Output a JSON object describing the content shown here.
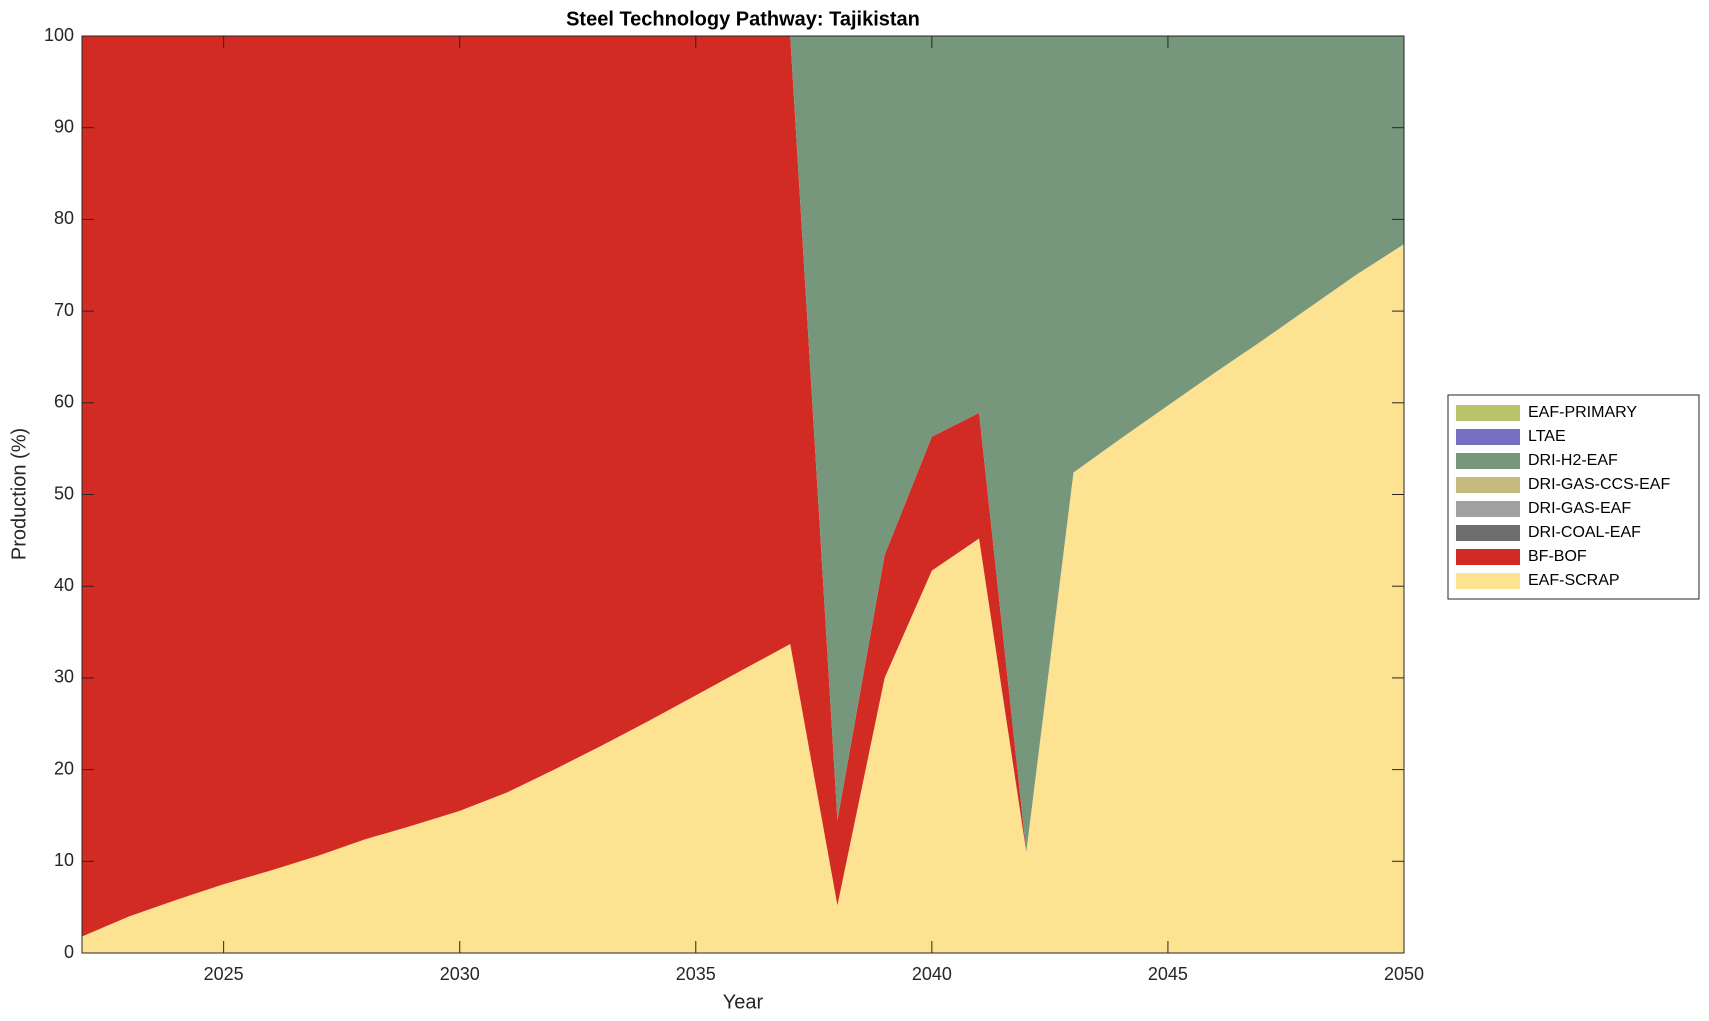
{
  "chart_data": {
    "type": "stacked_area",
    "title": "Steel Technology Pathway: Tajikistan",
    "x_label": "Year",
    "y_label": "Production (%)",
    "x": [
      2022,
      2023,
      2024,
      2025,
      2026,
      2027,
      2028,
      2029,
      2030,
      2031,
      2032,
      2033,
      2034,
      2035,
      2036,
      2037,
      2038,
      2039,
      2040,
      2041,
      2042,
      2043,
      2044,
      2045,
      2046,
      2047,
      2048,
      2049,
      2050
    ],
    "xlim": [
      2022,
      2050
    ],
    "xticks": [
      2025,
      2030,
      2035,
      2040,
      2045,
      2050
    ],
    "ylim": [
      0,
      100
    ],
    "yticks": [
      0,
      10,
      20,
      30,
      40,
      50,
      60,
      70,
      80,
      90,
      100
    ],
    "legend_position": "right",
    "series": [
      {
        "name": "EAF-SCRAP",
        "color": "#fde391",
        "values": [
          1.8,
          4.0,
          5.8,
          7.5,
          9.0,
          10.6,
          12.4,
          13.9,
          15.5,
          17.5,
          20.0,
          22.6,
          25.3,
          28.1,
          30.9,
          33.7,
          5.2,
          30.0,
          41.7,
          45.2,
          11.0,
          52.4,
          56.1,
          59.7,
          63.3,
          66.8,
          70.4,
          74.0,
          77.3
        ]
      },
      {
        "name": "BF-BOF",
        "color": "#d12b24",
        "values": [
          98.2,
          96.0,
          94.2,
          92.5,
          91.0,
          89.4,
          87.6,
          86.1,
          84.5,
          82.5,
          80.0,
          77.4,
          74.7,
          71.9,
          69.1,
          66.3,
          9.3,
          13.4,
          14.6,
          13.7,
          0,
          0,
          0,
          0,
          0,
          0,
          0,
          0,
          0
        ]
      },
      {
        "name": "DRI-COAL-EAF",
        "color": "#6e6e6e",
        "values": [
          0,
          0,
          0,
          0,
          0,
          0,
          0,
          0,
          0,
          0,
          0,
          0,
          0,
          0,
          0,
          0,
          0,
          0,
          0,
          0,
          0,
          0,
          0,
          0,
          0,
          0,
          0,
          0,
          0
        ]
      },
      {
        "name": "DRI-GAS-EAF",
        "color": "#a0a0a0",
        "values": [
          0,
          0,
          0,
          0,
          0,
          0,
          0,
          0,
          0,
          0,
          0,
          0,
          0,
          0,
          0,
          0,
          0,
          0,
          0,
          0,
          0,
          0,
          0,
          0,
          0,
          0,
          0,
          0,
          0
        ]
      },
      {
        "name": "DRI-GAS-CCS-EAF",
        "color": "#c4bb7e",
        "values": [
          0,
          0,
          0,
          0,
          0,
          0,
          0,
          0,
          0,
          0,
          0,
          0,
          0,
          0,
          0,
          0,
          0,
          0,
          0,
          0,
          0,
          0,
          0,
          0,
          0,
          0,
          0,
          0,
          0
        ]
      },
      {
        "name": "DRI-H2-EAF",
        "color": "#76977c",
        "values": [
          0,
          0,
          0,
          0,
          0,
          0,
          0,
          0,
          0,
          0,
          0,
          0,
          0,
          0,
          0,
          0,
          85.5,
          56.6,
          43.7,
          41.1,
          89.0,
          47.6,
          43.9,
          40.3,
          36.7,
          33.2,
          29.6,
          26.0,
          22.7
        ]
      },
      {
        "name": "LTAE",
        "color": "#7570c0",
        "values": [
          0,
          0,
          0,
          0,
          0,
          0,
          0,
          0,
          0,
          0,
          0,
          0,
          0,
          0,
          0,
          0,
          0,
          0,
          0,
          0,
          0,
          0,
          0,
          0,
          0,
          0,
          0,
          0,
          0
        ]
      },
      {
        "name": "EAF-PRIMARY",
        "color": "#b9c46a",
        "values": [
          0,
          0,
          0,
          0,
          0,
          0,
          0,
          0,
          0,
          0,
          0,
          0,
          0,
          0,
          0,
          0,
          0,
          0,
          0,
          0,
          0,
          0,
          0,
          0,
          0,
          0,
          0,
          0,
          0
        ]
      }
    ]
  }
}
